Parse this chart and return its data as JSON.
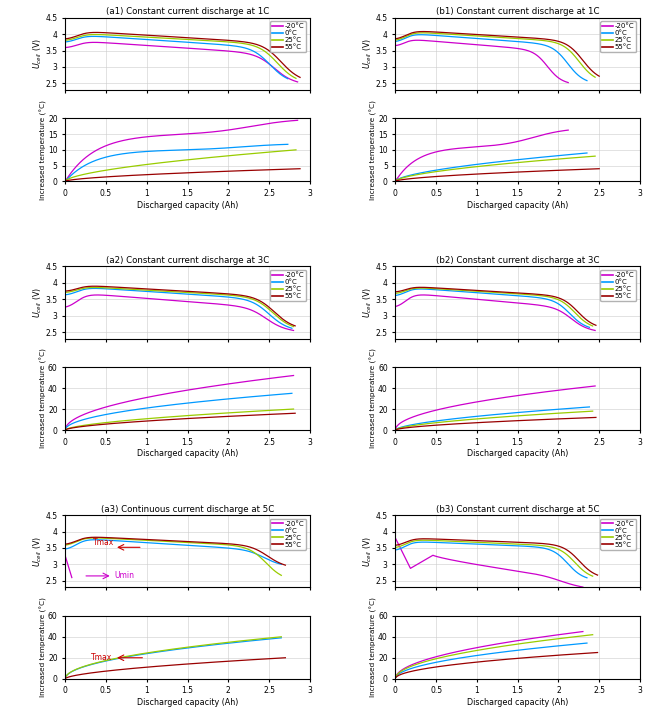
{
  "colors": {
    "-20": "#CC00CC",
    "0": "#0099FF",
    "25": "#99CC00",
    "55": "#990000"
  },
  "legend_labels": [
    "-20°C",
    "0°C",
    "25°C",
    "55°C"
  ],
  "titles": {
    "a1": "(a1) Constant current discharge at 1C",
    "b1": "(b1) Constant current discharge at 1C",
    "a2": "(a2) Constant current discharge at 3C",
    "b2": "(b2) Constant current discharge at 3C",
    "a3": "(a3) Continuous current discharge at 5C",
    "b3": "(b3) Constant current discharge at 5C"
  },
  "xlabel": "Discharged capacity (Ah)",
  "annot_tmax_color": "#CC0000",
  "annot_umin_color": "#CC00CC"
}
